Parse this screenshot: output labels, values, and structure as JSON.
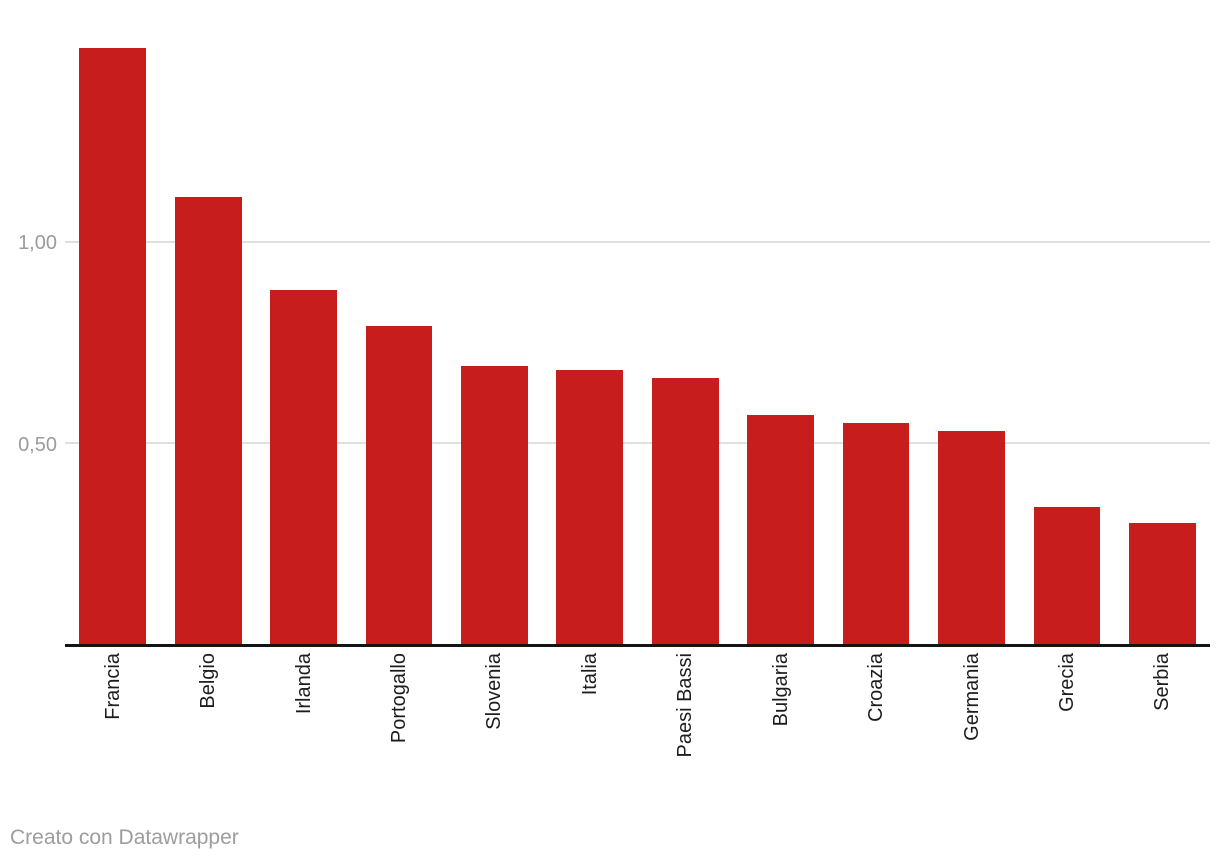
{
  "chart_data": {
    "type": "bar",
    "categories": [
      "Francia",
      "Belgio",
      "Irlanda",
      "Portogallo",
      "Slovenia",
      "Italia",
      "Paesi Bassi",
      "Bulgaria",
      "Croazia",
      "Germania",
      "Grecia",
      "Serbia"
    ],
    "values": [
      1.48,
      1.11,
      0.88,
      0.79,
      0.69,
      0.68,
      0.66,
      0.57,
      0.55,
      0.53,
      0.34,
      0.3
    ],
    "title": "",
    "xlabel": "",
    "ylabel": "",
    "ylim": [
      0,
      1.6
    ],
    "yticks": [
      {
        "value": 0.5,
        "label": "0,50"
      },
      {
        "value": 1.0,
        "label": "1,00"
      }
    ],
    "grid": "horizontal",
    "legend": "none",
    "bar_color": "#c71e1d",
    "x_label_rotation": -90,
    "decimal_separator": "comma"
  },
  "footer": {
    "credit": "Creato con Datawrapper"
  },
  "colors": {
    "background": "#ffffff",
    "bar": "#c71e1d",
    "grid": "#e0e0e0",
    "axis": "#141414",
    "tick_label": "#9b9b9b",
    "x_label": "#1d1d1d",
    "credit": "#9d9d9d"
  }
}
